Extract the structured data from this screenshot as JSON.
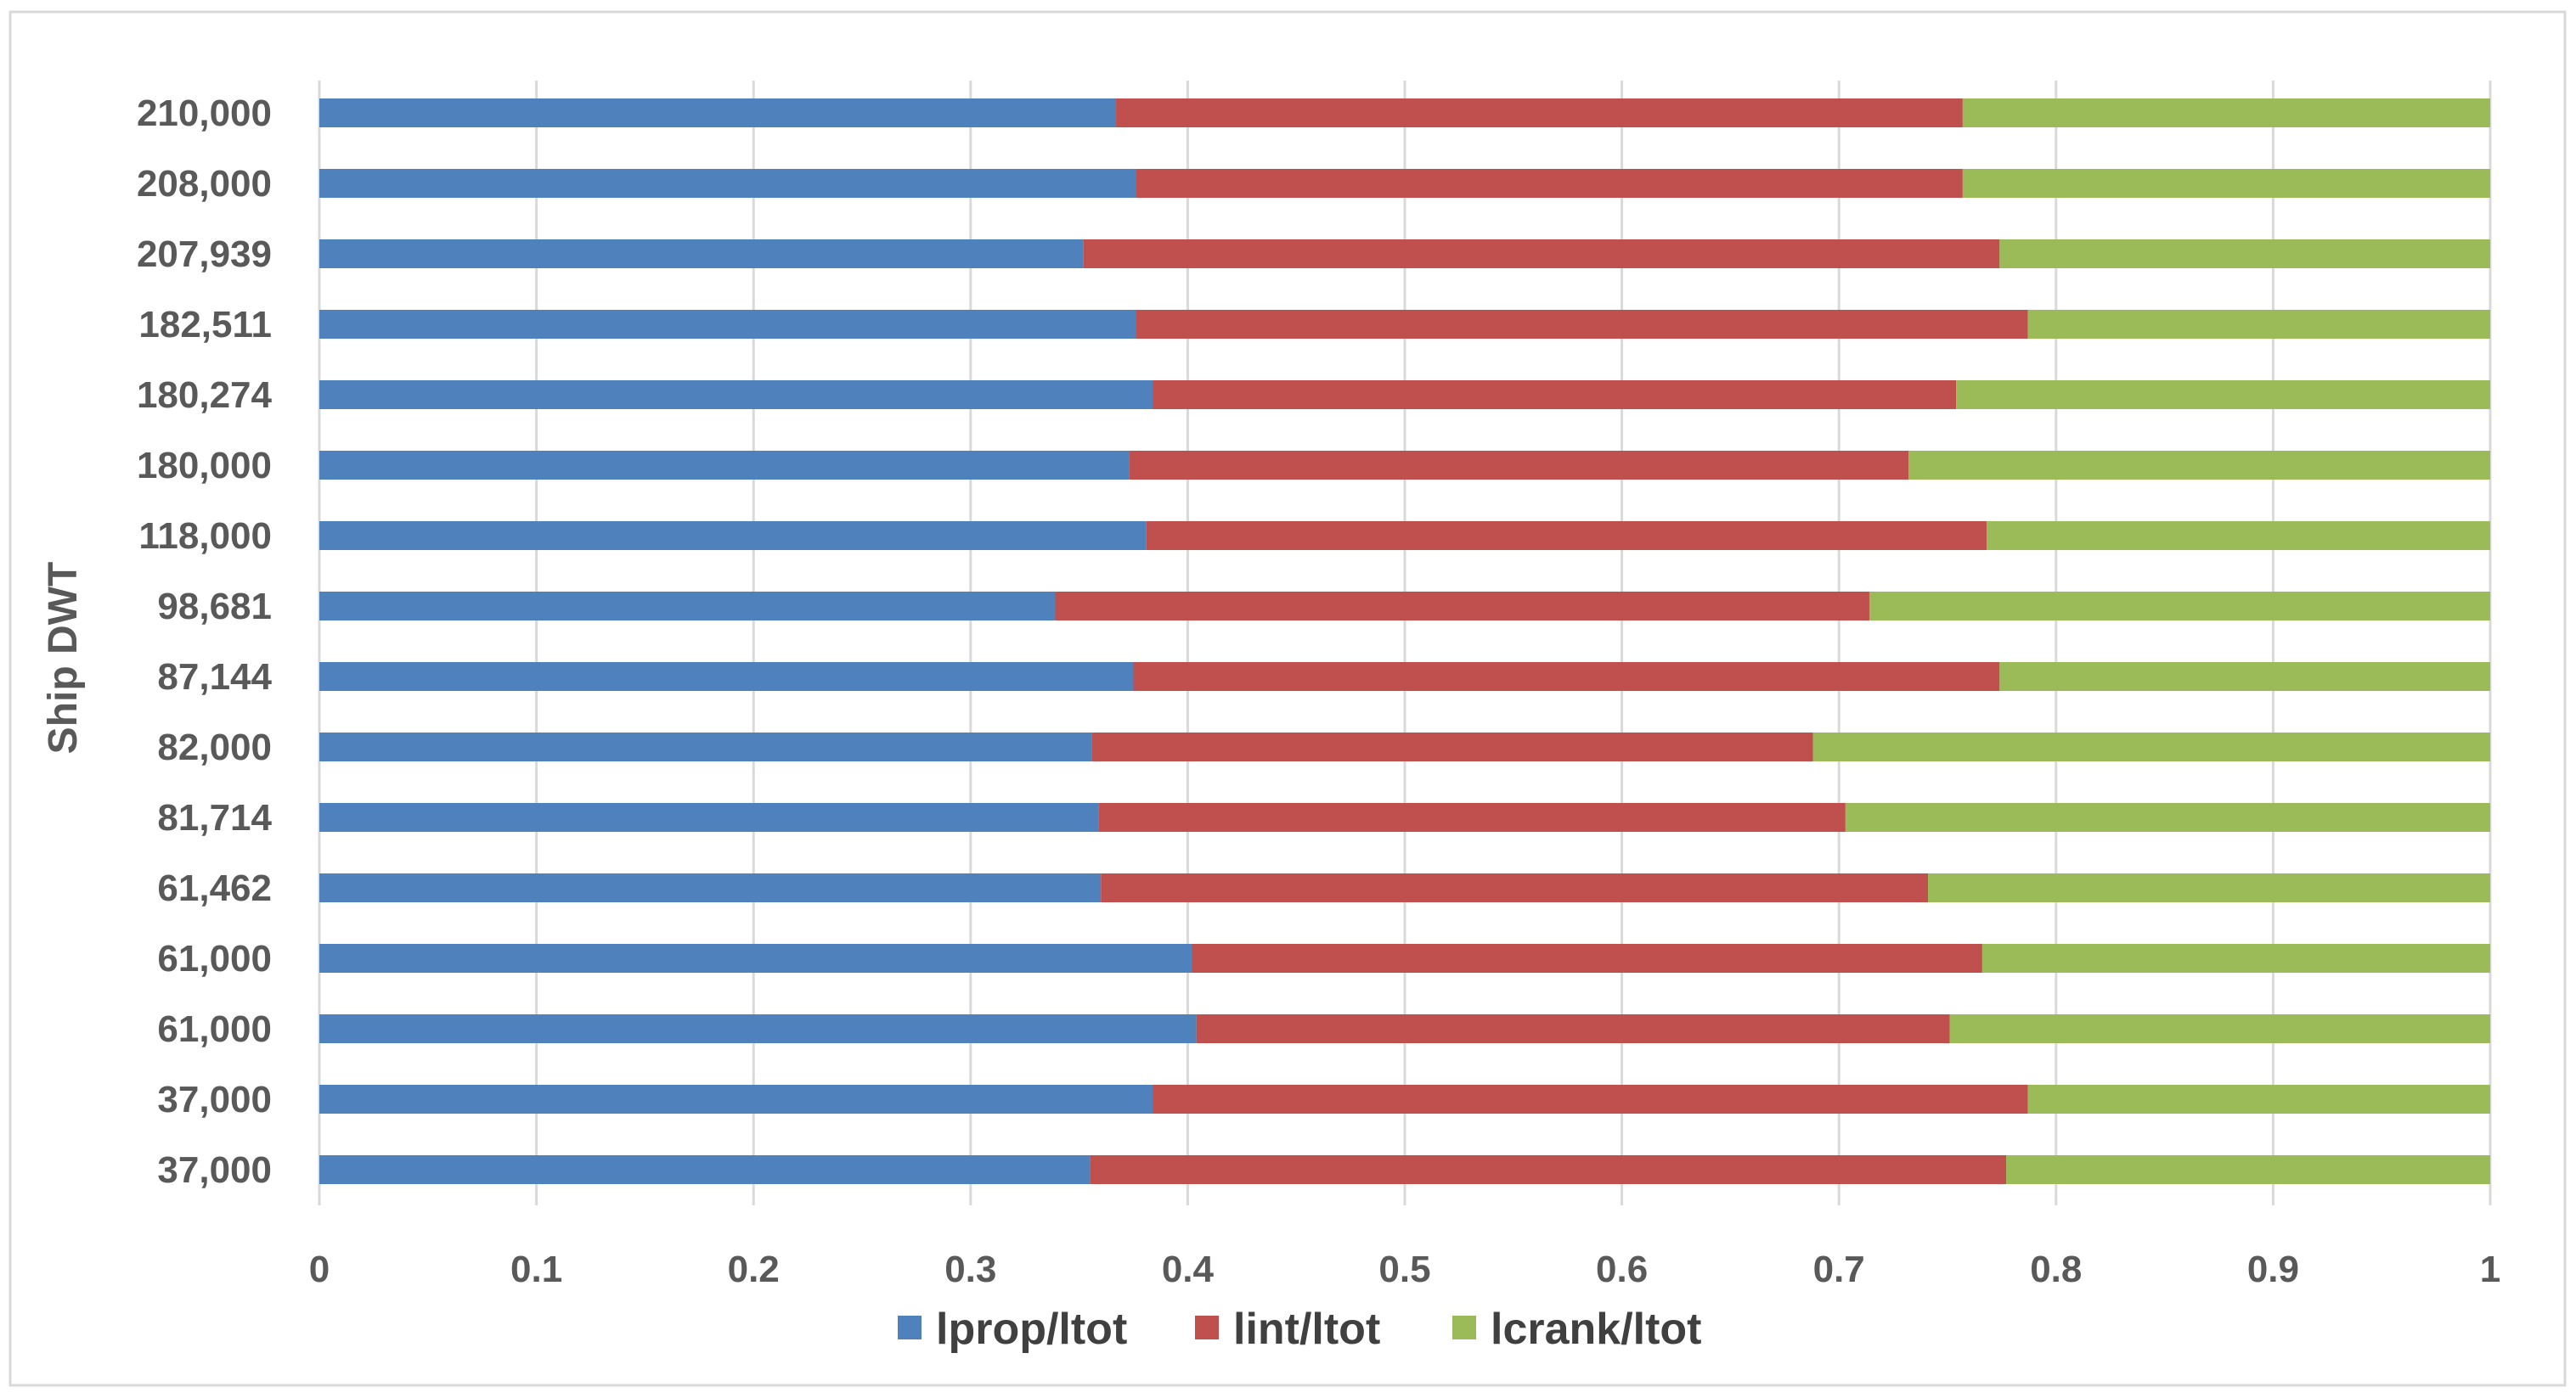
{
  "chart_data": {
    "type": "bar",
    "orientation": "horizontal",
    "stacked": true,
    "categories": [
      "37,000",
      "37,000",
      "61,000",
      "61,000",
      "61,462",
      "81,714",
      "82,000",
      "87,144",
      "98,681",
      "118,000",
      "180,000",
      "180,274",
      "182,511",
      "207,939",
      "208,000",
      "210,000"
    ],
    "series": [
      {
        "name": "lprop/ltot",
        "color": "#4f81bd",
        "values": [
          0.355,
          0.384,
          0.404,
          0.402,
          0.36,
          0.359,
          0.356,
          0.375,
          0.339,
          0.381,
          0.373,
          0.384,
          0.376,
          0.352,
          0.376,
          0.367
        ]
      },
      {
        "name": "lint/ltot",
        "color": "#c0504d",
        "values": [
          0.422,
          0.403,
          0.347,
          0.364,
          0.381,
          0.344,
          0.332,
          0.399,
          0.375,
          0.387,
          0.359,
          0.37,
          0.411,
          0.422,
          0.381,
          0.39
        ]
      },
      {
        "name": "lcrank/ltot",
        "color": "#9bbb59",
        "values": [
          0.223,
          0.213,
          0.249,
          0.234,
          0.259,
          0.297,
          0.312,
          0.226,
          0.286,
          0.232,
          0.268,
          0.246,
          0.213,
          0.226,
          0.243,
          0.243
        ]
      }
    ],
    "title": "",
    "xlabel": "",
    "ylabel": "Ship DWT",
    "xlim": [
      0,
      1
    ],
    "xticks": [
      "0",
      "0.1",
      "0.2",
      "0.3",
      "0.4",
      "0.5",
      "0.6",
      "0.7",
      "0.8",
      "0.9",
      "1"
    ],
    "grid": "vertical",
    "legend": "bottom"
  }
}
